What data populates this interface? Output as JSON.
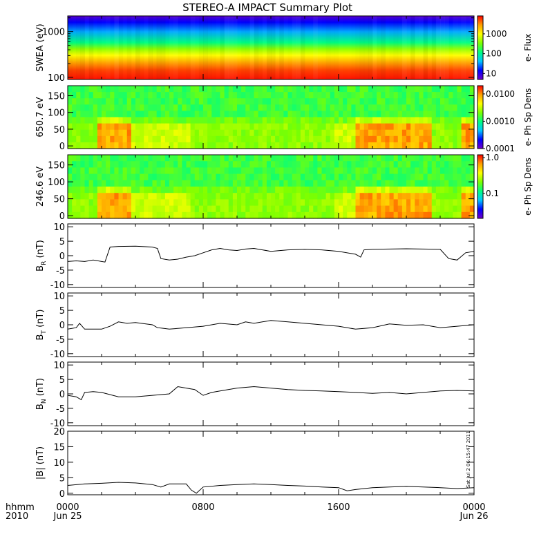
{
  "title": "STEREO-A IMPACT Summary Plot",
  "stamp": "Sat Jul  2 06:15:47 2011",
  "x_axis": {
    "time_label": "hhmm",
    "year_label": "2010",
    "ticks": [
      {
        "hour": 0,
        "label": "0000",
        "sublabel": "Jun 25"
      },
      {
        "hour": 8,
        "label": "0800",
        "sublabel": ""
      },
      {
        "hour": 16,
        "label": "1600",
        "sublabel": ""
      },
      {
        "hour": 24,
        "label": "0000",
        "sublabel": "Jun 26"
      }
    ],
    "range_hours": [
      0,
      24
    ]
  },
  "colors": {
    "colorbar": [
      "#7000c8",
      "#0000ff",
      "#00c8ff",
      "#00ff7f",
      "#7cff00",
      "#ffff00",
      "#ffa000",
      "#ff0000"
    ]
  },
  "chart_data": [
    {
      "type": "heatmap",
      "id": "swea",
      "ylabel": "SWEA (eV)",
      "yscale": "log",
      "ylim": [
        90,
        2200
      ],
      "yticks": [
        100,
        1000
      ],
      "ytick_labels": [
        "100",
        "1000"
      ],
      "colorbar": {
        "label": "e- Flux",
        "scale": "log",
        "range": [
          5,
          8000
        ],
        "ticks": [
          10,
          100,
          1000
        ],
        "tick_labels": [
          "10",
          "100",
          "1000"
        ]
      }
    },
    {
      "type": "heatmap",
      "id": "pad650",
      "ylabel": "650.7 eV",
      "ylim": [
        -8,
        180
      ],
      "yticks": [
        0,
        50,
        100,
        150
      ],
      "colorbar": {
        "label": "e- Ph Sp Dens",
        "scale": "log",
        "range": [
          0.0001,
          0.02
        ],
        "ticks": [
          0.0001,
          0.001,
          0.01
        ],
        "tick_labels": [
          "0.0001",
          "0.0010",
          "0.0100"
        ]
      }
    },
    {
      "type": "heatmap",
      "id": "pad246",
      "ylabel": "246.6 eV",
      "ylim": [
        -8,
        180
      ],
      "yticks": [
        0,
        50,
        100,
        150
      ],
      "colorbar": {
        "label": "e- Ph Sp Dens",
        "scale": "log",
        "range": [
          0.02,
          1.2
        ],
        "ticks": [
          0.1,
          1.0
        ],
        "tick_labels": [
          "0.1",
          "1.0"
        ]
      }
    },
    {
      "type": "line",
      "id": "br",
      "ylabel": "B",
      "ylabel_sub": "R",
      "ylabel_unit": "(nT)",
      "ylim": [
        -11,
        11
      ],
      "yticks": [
        -10,
        -5,
        0,
        5,
        10
      ],
      "x": [
        0,
        0.5,
        1,
        1.5,
        2.2,
        2.5,
        3,
        4,
        5,
        5.3,
        5.5,
        6,
        6.5,
        7,
        7.5,
        8,
        8.5,
        9,
        9.5,
        10,
        10.5,
        11,
        11.5,
        12,
        13,
        14,
        15,
        16,
        17,
        17.3,
        17.5,
        18,
        19,
        20,
        21,
        22,
        22.5,
        23,
        23.5,
        24
      ],
      "y": [
        -2,
        -1.8,
        -2,
        -1.5,
        -2.2,
        3,
        3.2,
        3.3,
        3,
        2.5,
        -1,
        -1.5,
        -1.2,
        -0.5,
        0,
        1,
        2,
        2.5,
        2,
        1.8,
        2.3,
        2.5,
        2,
        1.5,
        2,
        2.2,
        2,
        1.5,
        0.5,
        -0.5,
        2,
        2.2,
        2.3,
        2.4,
        2.3,
        2.2,
        -1,
        -1.5,
        1,
        1.5
      ]
    },
    {
      "type": "line",
      "id": "bt",
      "ylabel": "B",
      "ylabel_sub": "T",
      "ylabel_unit": "(nT)",
      "ylim": [
        -11,
        11
      ],
      "yticks": [
        -10,
        -5,
        0,
        5,
        10
      ],
      "x": [
        0,
        0.5,
        0.7,
        1,
        2,
        2.5,
        3,
        3.5,
        4,
        5,
        5.3,
        5.6,
        6,
        7,
        8,
        8.5,
        9,
        10,
        10.5,
        11,
        11.5,
        12,
        13,
        14,
        15,
        16,
        17,
        18,
        19,
        20,
        21,
        22,
        23,
        24
      ],
      "y": [
        -1.5,
        -1,
        0.5,
        -1.5,
        -1.5,
        -0.5,
        1,
        0.5,
        0.8,
        0,
        -1,
        -1.2,
        -1.5,
        -1,
        -0.5,
        0,
        0.5,
        0,
        1,
        0.5,
        1,
        1.5,
        1,
        0.5,
        0,
        -0.5,
        -1.5,
        -1,
        0.3,
        -0.2,
        0,
        -1,
        -0.5,
        0
      ]
    },
    {
      "type": "line",
      "id": "bn",
      "ylabel": "B",
      "ylabel_sub": "N",
      "ylabel_unit": "(nT)",
      "ylim": [
        -11,
        11
      ],
      "yticks": [
        -10,
        -5,
        0,
        5,
        10
      ],
      "x": [
        0,
        0.5,
        0.8,
        1,
        1.5,
        2,
        3,
        4,
        5,
        6,
        6.5,
        7,
        7.5,
        8,
        8.5,
        9,
        10,
        11,
        12,
        13,
        14,
        15,
        16,
        17,
        18,
        19,
        20,
        21,
        22,
        23,
        24
      ],
      "y": [
        -0.5,
        -1,
        -2,
        0.5,
        0.8,
        0.5,
        -1,
        -1,
        -0.5,
        0,
        2.5,
        2,
        1.5,
        -0.5,
        0.5,
        1,
        2,
        2.5,
        2,
        1.5,
        1.2,
        1,
        0.8,
        0.5,
        0.2,
        0.5,
        0,
        0.5,
        1,
        1.2,
        1
      ]
    },
    {
      "type": "line",
      "id": "bmag",
      "ylabel": "|B|",
      "ylabel_unit": "(nT)",
      "ylim": [
        -0.5,
        20
      ],
      "yticks": [
        0,
        5,
        10,
        15,
        20
      ],
      "x": [
        0,
        1,
        2,
        3,
        4,
        5,
        5.5,
        6,
        7,
        7.3,
        7.6,
        8,
        9,
        10,
        11,
        12,
        13,
        14,
        15,
        16,
        16.5,
        17,
        18,
        19,
        20,
        21,
        22,
        23,
        24
      ],
      "y": [
        2.5,
        3,
        3.2,
        3.5,
        3.3,
        2.8,
        2,
        3,
        3,
        1,
        0,
        2,
        2.5,
        2.8,
        3,
        2.8,
        2.5,
        2.3,
        2,
        1.8,
        0.8,
        1.2,
        1.8,
        2,
        2.2,
        2,
        1.8,
        1.5,
        1.8
      ]
    }
  ]
}
